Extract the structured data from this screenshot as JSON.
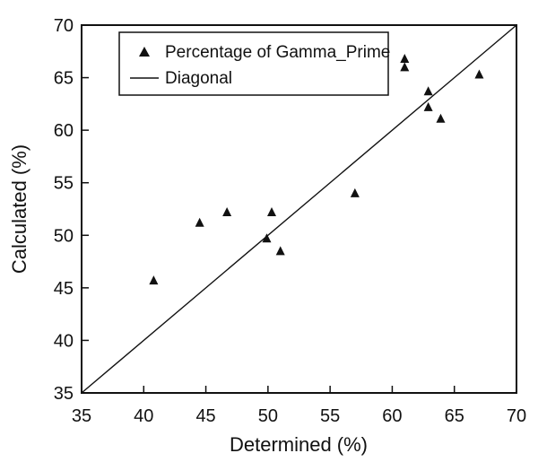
{
  "chart_data": {
    "type": "scatter",
    "xlabel": "Determined (%)",
    "ylabel": "Calculated (%)",
    "xlim": [
      35,
      70
    ],
    "ylim": [
      35,
      70
    ],
    "xticks": [
      "35",
      "40",
      "45",
      "50",
      "55",
      "60",
      "65",
      "70"
    ],
    "yticks": [
      "35",
      "40",
      "45",
      "50",
      "55",
      "60",
      "65",
      "70"
    ],
    "grid": false,
    "legend_position": "top-left",
    "series": [
      {
        "name": "Percentage of Gamma_Prime",
        "marker": "triangle",
        "color": "#111111",
        "points": [
          {
            "x": 40.8,
            "y": 45.7
          },
          {
            "x": 44.5,
            "y": 51.2
          },
          {
            "x": 46.7,
            "y": 52.2
          },
          {
            "x": 49.9,
            "y": 49.7
          },
          {
            "x": 50.3,
            "y": 52.2
          },
          {
            "x": 51.0,
            "y": 48.5
          },
          {
            "x": 57.0,
            "y": 54.0
          },
          {
            "x": 61.0,
            "y": 66.8
          },
          {
            "x": 61.0,
            "y": 66.0
          },
          {
            "x": 62.9,
            "y": 63.7
          },
          {
            "x": 62.9,
            "y": 62.2
          },
          {
            "x": 63.9,
            "y": 61.1
          },
          {
            "x": 67.0,
            "y": 65.3
          }
        ]
      },
      {
        "name": "Diagonal",
        "marker": "line",
        "color": "#111111",
        "points": [
          {
            "x": 35,
            "y": 35
          },
          {
            "x": 70,
            "y": 70
          }
        ]
      }
    ]
  }
}
